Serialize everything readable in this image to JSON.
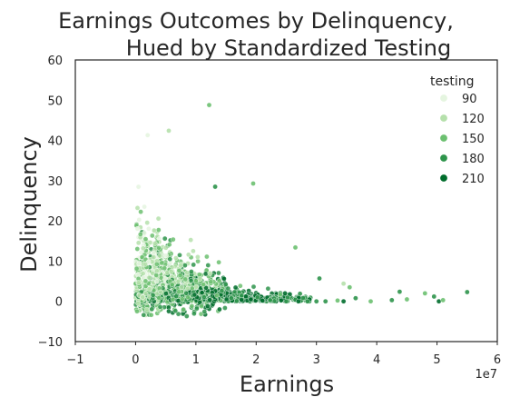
{
  "chart_data": {
    "type": "scatter",
    "title_line1": "Earnings Outcomes by Delinquency,",
    "title_line2": "Hued by Standardized Testing",
    "xlabel": "Earnings",
    "ylabel": "Delinquency",
    "x_offset_text": "1e7",
    "xlim": [
      -1,
      6
    ],
    "ylim": [
      -10,
      60
    ],
    "x_ticks": [
      "−1",
      "0",
      "1",
      "2",
      "3",
      "4",
      "5",
      "6"
    ],
    "x_tick_values": [
      -1,
      0,
      1,
      2,
      3,
      4,
      5,
      6
    ],
    "y_ticks": [
      "−10",
      "0",
      "10",
      "20",
      "30",
      "40",
      "50",
      "60"
    ],
    "y_tick_values": [
      -10,
      0,
      10,
      20,
      30,
      40,
      50,
      60
    ],
    "grid": false,
    "legend": {
      "title": "testing",
      "placement": "top-right",
      "entries": [
        {
          "label": "90",
          "color": "#e5f5e0"
        },
        {
          "label": "120",
          "color": "#b5e0ab"
        },
        {
          "label": "150",
          "color": "#6cc070"
        },
        {
          "label": "180",
          "color": "#2e944b"
        },
        {
          "label": "210",
          "color": "#006d2c"
        }
      ]
    },
    "highlighted_points": [
      {
        "x": 1.22,
        "y": 48.8,
        "testing": 150
      },
      {
        "x": 0.2,
        "y": 41.3,
        "testing": 90
      },
      {
        "x": 0.55,
        "y": 42.4,
        "testing": 120
      },
      {
        "x": 1.32,
        "y": 28.5,
        "testing": 180
      },
      {
        "x": 1.95,
        "y": 29.3,
        "testing": 150
      },
      {
        "x": 2.65,
        "y": 13.4,
        "testing": 150
      },
      {
        "x": 3.05,
        "y": 5.7,
        "testing": 180
      },
      {
        "x": 3.45,
        "y": 4.4,
        "testing": 120
      },
      {
        "x": 3.55,
        "y": 3.5,
        "testing": 150
      },
      {
        "x": 4.38,
        "y": 2.4,
        "testing": 180
      },
      {
        "x": 4.8,
        "y": 2.0,
        "testing": 150
      },
      {
        "x": 5.5,
        "y": 2.3,
        "testing": 180
      },
      {
        "x": 5.03,
        "y": 0.0,
        "testing": 210
      },
      {
        "x": 5.1,
        "y": 0.3,
        "testing": 150
      },
      {
        "x": 4.95,
        "y": 1.2,
        "testing": 180
      },
      {
        "x": 4.5,
        "y": 0.5,
        "testing": 150
      },
      {
        "x": 4.25,
        "y": 0.3,
        "testing": 180
      },
      {
        "x": 3.9,
        "y": 0.0,
        "testing": 150
      },
      {
        "x": 3.65,
        "y": 0.8,
        "testing": 180
      },
      {
        "x": 3.45,
        "y": 0.0,
        "testing": 210
      },
      {
        "x": 3.35,
        "y": 0.2,
        "testing": 150
      },
      {
        "x": 3.15,
        "y": 0.0,
        "testing": 180
      },
      {
        "x": 3.0,
        "y": 0.0,
        "testing": 180
      },
      {
        "x": 2.85,
        "y": 0.0,
        "testing": 180
      },
      {
        "x": 2.7,
        "y": 0.0,
        "testing": 210
      },
      {
        "x": 2.5,
        "y": 0.0,
        "testing": 180
      },
      {
        "x": 2.4,
        "y": 1.7,
        "testing": 150
      }
    ]
  }
}
